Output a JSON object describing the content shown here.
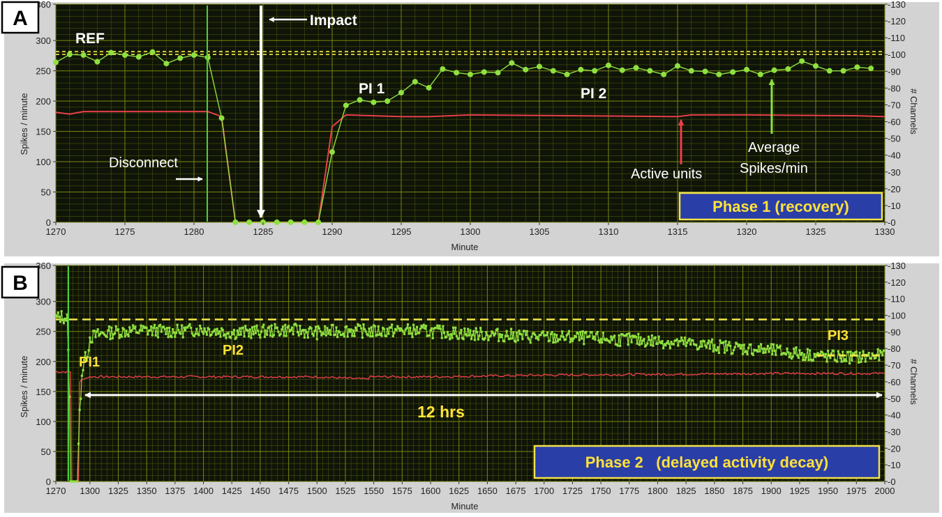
{
  "colors": {
    "plot_bg": "#0f1408",
    "grid": "#76820f",
    "spikes": "#8fe040",
    "channels": "#e8404a",
    "ref": "#f0e64a",
    "frame": "#d3d3d3",
    "phase_box": "#2a3ea8",
    "phase_border": "#f2e24a"
  },
  "chart_data": [
    {
      "type": "line",
      "panel": "A",
      "xlabel": "Minute",
      "ylabel": "Spikes / minute",
      "y2label": "# Channels",
      "xlim": [
        1270,
        1330
      ],
      "ylim": [
        0,
        360
      ],
      "y2lim": [
        0,
        130
      ],
      "xticks": [
        1270,
        1275,
        1280,
        1285,
        1290,
        1295,
        1300,
        1305,
        1310,
        1315,
        1320,
        1325,
        1330
      ],
      "yticks": [
        0,
        50,
        100,
        150,
        200,
        250,
        300,
        360
      ],
      "y2ticks": [
        0,
        10,
        20,
        30,
        40,
        50,
        60,
        70,
        80,
        90,
        100,
        110,
        120,
        130
      ],
      "ytick_labels": [
        "0",
        "50",
        "100",
        "150",
        "200",
        "250",
        "300",
        "360"
      ],
      "y2tick_labels": [
        "0",
        "10",
        "20",
        "30",
        "40",
        "50",
        "60",
        "70",
        "80",
        "90",
        "100",
        "110",
        "120",
        "130"
      ],
      "ref_levels": [
        277,
        282
      ],
      "series": [
        {
          "role": "spikes",
          "x": [
            1270,
            1271,
            1272,
            1273,
            1274,
            1275,
            1276,
            1277,
            1278,
            1279,
            1280,
            1281,
            1282,
            1283,
            1284,
            1285,
            1286,
            1287,
            1288,
            1289,
            1290,
            1291,
            1292,
            1293,
            1294,
            1295,
            1296,
            1297,
            1298,
            1299,
            1300,
            1301,
            1302,
            1303,
            1304,
            1305,
            1306,
            1307,
            1308,
            1309,
            1310,
            1311,
            1312,
            1313,
            1314,
            1315,
            1316,
            1317,
            1318,
            1319,
            1320,
            1321,
            1322,
            1323,
            1324,
            1325,
            1326,
            1327,
            1328,
            1329
          ],
          "values": [
            264,
            277,
            276,
            265,
            280,
            276,
            273,
            281,
            262,
            271,
            276,
            272,
            172,
            0,
            0,
            0,
            0,
            0,
            0,
            0,
            116,
            193,
            202,
            198,
            200,
            214,
            232,
            222,
            253,
            247,
            244,
            248,
            247,
            263,
            252,
            257,
            250,
            244,
            252,
            250,
            259,
            251,
            255,
            250,
            244,
            258,
            250,
            249,
            244,
            248,
            252,
            244,
            251,
            253,
            266,
            258,
            250,
            250,
            256,
            254
          ]
        },
        {
          "role": "channels",
          "x": [
            1270,
            1271,
            1272,
            1281,
            1282,
            1283,
            1289,
            1290,
            1291,
            1293,
            1295,
            1297,
            1300,
            1315,
            1316,
            1320,
            1328,
            1330
          ],
          "values": [
            65.5,
            64.5,
            66,
            66,
            63,
            0,
            0,
            57,
            64,
            63.5,
            63,
            63,
            64,
            63,
            64,
            64,
            63.5,
            63
          ]
        }
      ]
    },
    {
      "type": "line",
      "panel": "B",
      "xlabel": "Minute",
      "ylabel": "Spikes / minute",
      "y2label": "# Channels",
      "xlim": [
        1270,
        2000
      ],
      "ylim": [
        0,
        360
      ],
      "y2lim": [
        0,
        130
      ],
      "xticks": [
        1270,
        1300,
        1325,
        1350,
        1375,
        1400,
        1425,
        1450,
        1475,
        1500,
        1525,
        1550,
        1575,
        1600,
        1625,
        1650,
        1675,
        1700,
        1725,
        1750,
        1775,
        1800,
        1825,
        1850,
        1875,
        1900,
        1925,
        1950,
        1975,
        2000
      ],
      "yticks": [
        0,
        50,
        100,
        150,
        200,
        250,
        300,
        360
      ],
      "y2ticks": [
        0,
        10,
        20,
        30,
        40,
        50,
        60,
        70,
        80,
        90,
        100,
        110,
        120,
        130
      ],
      "ytick_labels": [
        "0",
        "50",
        "100",
        "150",
        "200",
        "250",
        "300",
        "360"
      ],
      "y2tick_labels": [
        "0",
        "10",
        "20",
        "30",
        "40",
        "50",
        "60",
        "70",
        "80",
        "90",
        "100",
        "110",
        "120",
        "130"
      ],
      "ref_levels": [
        270
      ],
      "pi3_level": 210,
      "series": [
        {
          "role": "spikes",
          "x": [
            1270,
            1275,
            1280,
            1282,
            1283,
            1289,
            1291,
            1293,
            1295,
            1298,
            1300,
            1310,
            1325,
            1350,
            1375,
            1400,
            1425,
            1450,
            1475,
            1500,
            1525,
            1550,
            1575,
            1600,
            1625,
            1650,
            1675,
            1700,
            1725,
            1750,
            1775,
            1800,
            1825,
            1850,
            1875,
            1900,
            1925,
            1950,
            1975,
            2000
          ],
          "values": [
            272,
            275,
            272,
            150,
            0,
            0,
            115,
            180,
            200,
            215,
            240,
            246,
            250,
            252,
            250,
            254,
            248,
            250,
            253,
            248,
            252,
            250,
            252,
            250,
            247,
            245,
            243,
            240,
            240,
            238,
            236,
            234,
            230,
            226,
            222,
            218,
            213,
            208,
            207,
            210
          ]
        },
        {
          "role": "channels",
          "x": [
            1270,
            1283,
            1284,
            1290,
            1291,
            1295,
            1300,
            1400,
            1500,
            1545,
            1546,
            1550,
            1600,
            1700,
            1800,
            1900,
            1960,
            2000
          ],
          "values": [
            66,
            66,
            0,
            0,
            60,
            62,
            63,
            63,
            63,
            61.5,
            63,
            63,
            63,
            64,
            64.5,
            65,
            65,
            65
          ]
        }
      ]
    }
  ],
  "panels": {
    "a": {
      "letter": "A",
      "annotations": {
        "ref": "REF",
        "impact": "Impact",
        "disconnect": "Disconnect",
        "pi1": "PI 1",
        "pi2": "PI 2",
        "active_units": "Active units",
        "average_1": "Average",
        "average_2": "Spikes/min"
      },
      "phase_label": "Phase 1 (recovery)"
    },
    "b": {
      "letter": "B",
      "annotations": {
        "pi1": "PI1",
        "pi2": "PI2",
        "pi3": "PI3",
        "duration": "12 hrs"
      },
      "phase_label": "Phase 2   (delayed activity decay)"
    }
  }
}
